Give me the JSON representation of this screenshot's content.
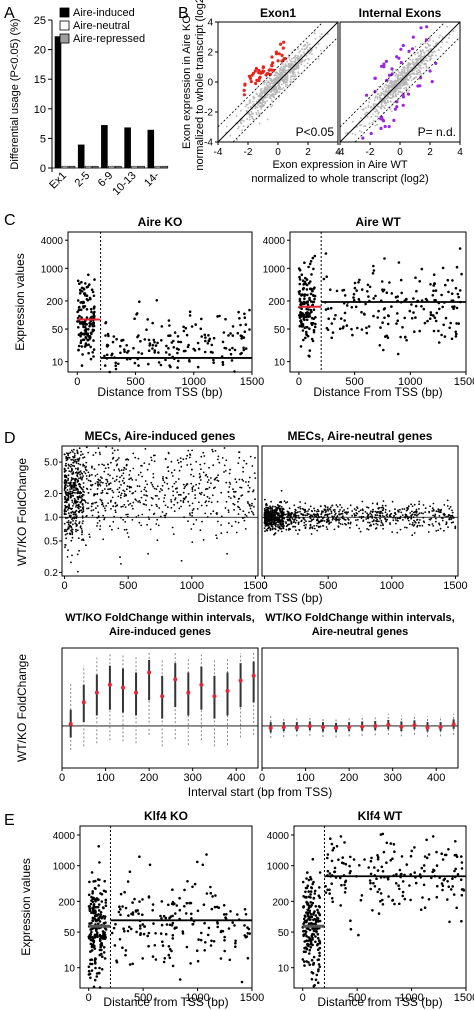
{
  "panel_letters": [
    "A",
    "B",
    "C",
    "D",
    "E"
  ],
  "chart_data": [
    {
      "id": "A",
      "type": "bar",
      "ylabel": "Differential usage (P<0.05) (%)",
      "categories": [
        "Ex1",
        "2-5",
        "6-9",
        "10-13",
        "14-"
      ],
      "yticks": [
        0,
        5,
        10,
        15,
        20,
        25
      ],
      "ylim": [
        0,
        25
      ],
      "legend_position": "top-right",
      "series": [
        {
          "name": "Aire-induced",
          "color": "#000000",
          "values": [
            22.2,
            3.9,
            7.2,
            6.8,
            6.4
          ]
        },
        {
          "name": "Aire-neutral",
          "color": "#ffffff",
          "values": [
            0.3,
            0.3,
            0.3,
            0.3,
            0.3
          ]
        },
        {
          "name": "Aire-repressed",
          "color": "#9e9e9e",
          "values": [
            0.3,
            0.3,
            0.3,
            0.3,
            0.3
          ]
        }
      ]
    },
    {
      "id": "B",
      "type": "scatter",
      "xlabel_line1": "Exon expression in Aire WT",
      "xlabel_line2": "normalized to whole transcript (log2)",
      "ylabel_line1": "Exon expression in Aire KO",
      "ylabel_line2": "normalized to whole transcript (log2)",
      "xlim": [
        -4,
        4
      ],
      "ylim": [
        -4,
        4
      ],
      "xticks": [
        -4,
        -2,
        0,
        2,
        4
      ],
      "yticks": [
        -4,
        -2,
        0,
        2,
        4
      ],
      "panels": [
        {
          "title": "Exon1",
          "stat": "P<0.05",
          "highlight_color": "#e8241c"
        },
        {
          "title": "Internal Exons",
          "stat": "P= n.d.",
          "highlight_color": "#9a28e0"
        }
      ]
    },
    {
      "id": "C",
      "type": "scatter",
      "xlabel": [
        "Distance from TSS (bp)",
        "Distance From TSS (bp)"
      ],
      "ylabel": "Expression values",
      "yscale": "log",
      "ylim": [
        6,
        6000
      ],
      "xlim": [
        -80,
        1500
      ],
      "yticks": [
        10,
        50,
        200,
        1000,
        4000
      ],
      "xticks": [
        0,
        500,
        1000,
        1500
      ],
      "cutoff": 200,
      "panels": [
        {
          "title": "Aire KO",
          "mean_first": 80,
          "mean_rest": 12
        },
        {
          "title": "Aire WT",
          "mean_first": 150,
          "mean_rest": 190
        }
      ]
    },
    {
      "id": "D-top",
      "type": "scatter",
      "ylabel": "WT/KO FoldChange",
      "xlabel": "Distance from TSS (bp)",
      "yscale": "log",
      "ylim": [
        0.18,
        8
      ],
      "xlim": [
        -20,
        1520
      ],
      "yticks": [
        0.2,
        0.5,
        1.0,
        2.0,
        5.0
      ],
      "xticks": [
        0,
        500,
        1000,
        1500
      ],
      "panels": [
        {
          "title": "MECs, Aire-induced genes"
        },
        {
          "title": "MECs, Aire-neutral genes"
        }
      ]
    },
    {
      "id": "D-bottom",
      "type": "scatter",
      "ylabel": "WT/KO FoldChange",
      "xlabel": "Interval start (bp from TSS)",
      "ylim": [
        0.35,
        7
      ],
      "xlim": [
        0,
        450
      ],
      "xticks": [
        0,
        100,
        200,
        300,
        400
      ],
      "x": [
        20,
        50,
        80,
        110,
        140,
        170,
        200,
        230,
        260,
        290,
        320,
        350,
        380,
        410,
        440
      ],
      "panels": [
        {
          "title_line1": "WT/KO FoldChange within intervals,",
          "title_line2": "Aire-induced genes",
          "median": [
            1.05,
            1.8,
            2.3,
            2.8,
            2.6,
            2.3,
            3.8,
            2.1,
            3.2,
            2.3,
            2.8,
            2.1,
            2.4,
            3.1,
            3.5
          ],
          "q_low": [
            0.75,
            1.1,
            1.3,
            1.5,
            1.4,
            1.3,
            1.9,
            1.2,
            1.6,
            1.3,
            1.5,
            1.2,
            1.3,
            1.6,
            1.8
          ],
          "q_high": [
            1.5,
            2.8,
            3.6,
            4.5,
            4.2,
            3.8,
            5.2,
            3.5,
            4.8,
            3.8,
            4.4,
            3.5,
            3.8,
            4.8,
            5.0
          ],
          "w_low": [
            0.55,
            0.6,
            0.65,
            0.7,
            0.68,
            0.65,
            0.8,
            0.6,
            0.72,
            0.62,
            0.7,
            0.6,
            0.62,
            0.75,
            0.8
          ],
          "w_high": [
            3.0,
            4.5,
            5.5,
            6.2,
            6.0,
            5.6,
            6.5,
            5.2,
            6.3,
            5.4,
            6.0,
            5.2,
            5.5,
            6.2,
            6.3
          ]
        },
        {
          "title_line1": "WT/KO FoldChange within intervals,",
          "title_line2": "Aire-neutral genes",
          "median": [
            0.95,
            0.97,
            0.96,
            1.0,
            0.97,
            0.95,
            0.97,
            0.98,
            1.0,
            1.03,
            0.98,
            1.02,
            0.96,
            0.97,
            1.04
          ],
          "q_low": [
            0.85,
            0.88,
            0.88,
            0.9,
            0.87,
            0.86,
            0.88,
            0.89,
            0.9,
            0.92,
            0.88,
            0.92,
            0.87,
            0.88,
            0.93
          ],
          "q_high": [
            1.1,
            1.1,
            1.1,
            1.12,
            1.1,
            1.08,
            1.1,
            1.12,
            1.13,
            1.16,
            1.12,
            1.15,
            1.1,
            1.1,
            1.18
          ],
          "w_low": [
            0.74,
            0.76,
            0.77,
            0.78,
            0.76,
            0.75,
            0.77,
            0.78,
            0.79,
            0.8,
            0.77,
            0.8,
            0.76,
            0.77,
            0.8
          ],
          "w_high": [
            1.28,
            1.25,
            1.27,
            1.3,
            1.26,
            1.24,
            1.27,
            1.3,
            1.31,
            1.35,
            1.3,
            1.33,
            1.27,
            1.28,
            1.36
          ]
        }
      ]
    },
    {
      "id": "E",
      "type": "scatter",
      "xlabel": "Distance from TSS (bp)",
      "ylabel": "Expression values",
      "yscale": "log",
      "ylim": [
        4,
        6000
      ],
      "xlim": [
        -80,
        1500
      ],
      "yticks": [
        10,
        50,
        200,
        1000,
        4000
      ],
      "xticks": [
        0,
        500,
        1000,
        1500
      ],
      "cutoff": 200,
      "panels": [
        {
          "title": "Klf4 KO",
          "mean_first": 65,
          "mean_rest": 85
        },
        {
          "title": "Klf4 WT",
          "mean_first": 65,
          "mean_rest": 620
        }
      ]
    }
  ]
}
